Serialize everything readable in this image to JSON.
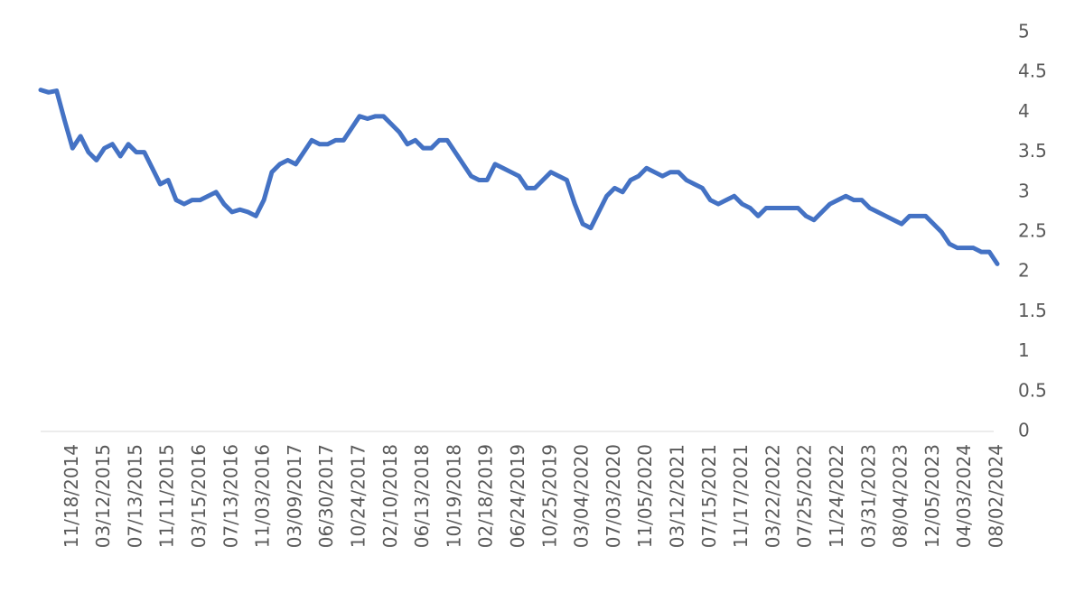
{
  "chart_data": {
    "type": "line",
    "categories": [
      null,
      null,
      null,
      null,
      "11/18/2014",
      null,
      null,
      null,
      "03/12/2015",
      null,
      null,
      null,
      "07/13/2015",
      null,
      null,
      null,
      "11/11/2015",
      null,
      null,
      null,
      "03/15/2016",
      null,
      null,
      null,
      "07/13/2016",
      null,
      null,
      null,
      "11/03/2016",
      null,
      null,
      null,
      "03/09/2017",
      null,
      null,
      null,
      "06/30/2017",
      null,
      null,
      null,
      "10/24/2017",
      null,
      null,
      null,
      "02/10/2018",
      null,
      null,
      null,
      "06/13/2018",
      null,
      null,
      null,
      "10/19/2018",
      null,
      null,
      null,
      "02/18/2019",
      null,
      null,
      null,
      "06/24/2019",
      null,
      null,
      null,
      "10/25/2019",
      null,
      null,
      null,
      "03/04/2020",
      null,
      null,
      null,
      "07/03/2020",
      null,
      null,
      null,
      "11/05/2020",
      null,
      null,
      null,
      "03/12/2021",
      null,
      null,
      null,
      "07/15/2021",
      null,
      null,
      null,
      "11/17/2021",
      null,
      null,
      null,
      "03/22/2022",
      null,
      null,
      null,
      "07/25/2022",
      null,
      null,
      null,
      "11/24/2022",
      null,
      null,
      null,
      "03/31/2023",
      null,
      null,
      null,
      "08/04/2023",
      null,
      null,
      null,
      "12/05/2023",
      null,
      null,
      null,
      "04/03/2024",
      null,
      null,
      null,
      "08/02/2024"
    ],
    "series": [
      {
        "color": "#4472c4",
        "values": [
          4.28,
          4.25,
          4.27,
          3.9,
          3.55,
          3.7,
          3.5,
          3.4,
          3.55,
          3.6,
          3.45,
          3.6,
          3.5,
          3.5,
          3.3,
          3.1,
          3.15,
          2.9,
          2.85,
          2.9,
          2.9,
          2.95,
          3.0,
          2.85,
          2.75,
          2.78,
          2.75,
          2.7,
          2.9,
          3.25,
          3.35,
          3.4,
          3.35,
          3.5,
          3.65,
          3.6,
          3.6,
          3.65,
          3.65,
          3.8,
          3.95,
          3.92,
          3.95,
          3.95,
          3.85,
          3.75,
          3.6,
          3.65,
          3.55,
          3.55,
          3.65,
          3.65,
          3.5,
          3.35,
          3.2,
          3.15,
          3.15,
          3.35,
          3.3,
          3.25,
          3.2,
          3.05,
          3.05,
          3.15,
          3.25,
          3.2,
          3.15,
          2.85,
          2.6,
          2.55,
          2.75,
          2.95,
          3.05,
          3.0,
          3.15,
          3.2,
          3.3,
          3.25,
          3.2,
          3.25,
          3.25,
          3.15,
          3.1,
          3.05,
          2.9,
          2.85,
          2.9,
          2.95,
          2.85,
          2.8,
          2.7,
          2.8,
          2.8,
          2.8,
          2.8,
          2.8,
          2.7,
          2.65,
          2.75,
          2.85,
          2.9,
          2.95,
          2.9,
          2.9,
          2.8,
          2.75,
          2.7,
          2.65,
          2.6,
          2.7,
          2.7,
          2.7,
          2.6,
          2.5,
          2.35,
          2.3,
          2.3,
          2.3,
          2.25,
          2.25,
          2.1
        ]
      }
    ],
    "ylim": [
      0,
      5
    ],
    "yticks": [
      0,
      0.5,
      1,
      1.5,
      2,
      2.5,
      3,
      3.5,
      4,
      4.5,
      5
    ],
    "grid": false
  }
}
